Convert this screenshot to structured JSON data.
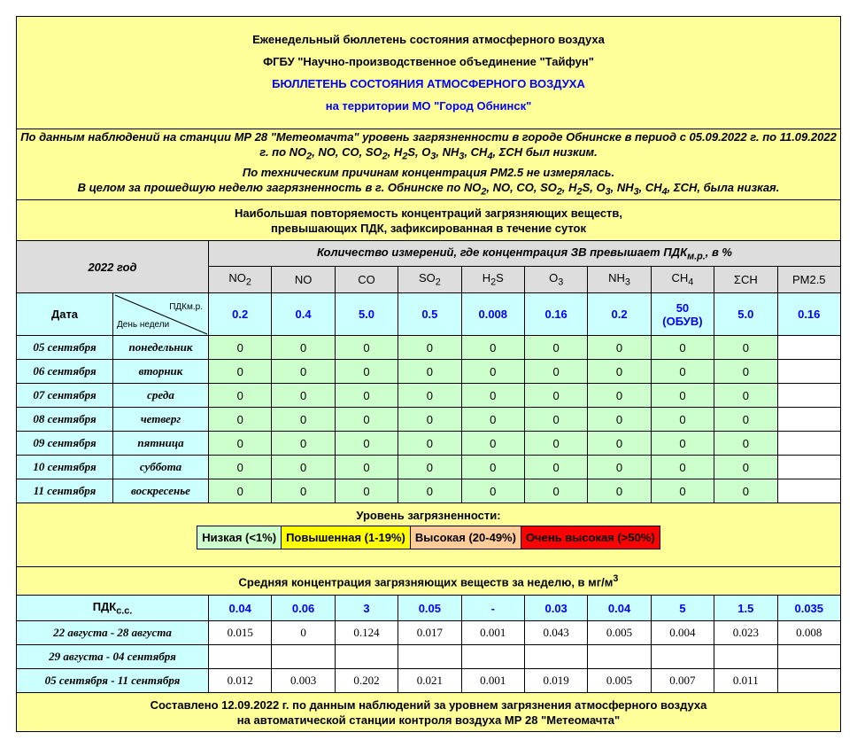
{
  "header": {
    "line1": "Еженедельный бюллетень состояния атмосферного воздуха",
    "line2": "ФГБУ \"Научно-производственное объединение \"Тайфун\"",
    "line3": "БЮЛЛЕТЕНЬ СОСТОЯНИЯ АТМОСФЕРНОГО ВОЗДУХА",
    "line4": "на территории МО \"Город Обнинск\""
  },
  "summary": {
    "p1": "По данным наблюдений на станции МР 28 \"Метеомачта\" уровень загрязненности в городе Обнинске в период с 05.09.2022 г. по 11.09.2022 г. по NO<sub>2</sub>, NO, CO, SO<sub>2</sub>, H<sub>2</sub>S, O<sub>3</sub>, NH<sub>3</sub>, CH<sub>4</sub>, ΣCH был низким.",
    "p2": "По техническим причинам концентрация PM2.5 не измерялась.",
    "p3": "В целом за прошедшую неделю загрязненность в г. Обнинске по NO<sub>2</sub>, NO, CO, SO<sub>2</sub>, H<sub>2</sub>S, O<sub>3</sub>, NH<sub>3</sub>, CH<sub>4</sub>, ΣCH, была низкая."
  },
  "section1": {
    "title": "Наибольшая повторяемость концентраций загрязняющих веществ,<br>превышающих ПДК, зафиксированная в течение суток",
    "year": "2022 год",
    "count_header": "Количество измерений, где концентрация ЗВ превышает ПДК<sub>м.р.</sub>, в %",
    "date_label": "Дата",
    "pdk_label": "ПДКм.р.",
    "weekday_label": "День недели"
  },
  "pollutants": [
    "NO<sub>2</sub>",
    "NO",
    "CO",
    "SO<sub>2</sub>",
    "H<sub>2</sub>S",
    "O<sub>3</sub>",
    "NH<sub>3</sub>",
    "CH<sub>4</sub>",
    "ΣCH",
    "PM2.5"
  ],
  "pdk_mr": [
    "0.2",
    "0.4",
    "5.0",
    "0.5",
    "0.008",
    "0.16",
    "0.2",
    "50<br>(ОБУВ)",
    "5.0",
    "0.16"
  ],
  "days": [
    {
      "date": "05 сентября",
      "weekday": "понедельник",
      "values": [
        "0",
        "0",
        "0",
        "0",
        "0",
        "0",
        "0",
        "0",
        "0",
        ""
      ]
    },
    {
      "date": "06 сентября",
      "weekday": "вторник",
      "values": [
        "0",
        "0",
        "0",
        "0",
        "0",
        "0",
        "0",
        "0",
        "0",
        ""
      ]
    },
    {
      "date": "07 сентября",
      "weekday": "среда",
      "values": [
        "0",
        "0",
        "0",
        "0",
        "0",
        "0",
        "0",
        "0",
        "0",
        ""
      ]
    },
    {
      "date": "08 сентября",
      "weekday": "четверг",
      "values": [
        "0",
        "0",
        "0",
        "0",
        "0",
        "0",
        "0",
        "0",
        "0",
        ""
      ]
    },
    {
      "date": "09 сентября",
      "weekday": "пятница",
      "values": [
        "0",
        "0",
        "0",
        "0",
        "0",
        "0",
        "0",
        "0",
        "0",
        ""
      ]
    },
    {
      "date": "10 сентября",
      "weekday": "суббота",
      "values": [
        "0",
        "0",
        "0",
        "0",
        "0",
        "0",
        "0",
        "0",
        "0",
        ""
      ]
    },
    {
      "date": "11 сентября",
      "weekday": "воскресенье",
      "values": [
        "0",
        "0",
        "0",
        "0",
        "0",
        "0",
        "0",
        "0",
        "0",
        ""
      ]
    }
  ],
  "legend": {
    "title": "Уровень загрязненности:",
    "items": [
      {
        "label": "Низкая (<1%)",
        "color": "#ccffcc"
      },
      {
        "label": "Повышенная (1-19%)",
        "color": "#ffff00"
      },
      {
        "label": "Высокая (20-49%)",
        "color": "#ffcc99"
      },
      {
        "label": "Очень высокая (>50%)",
        "color": "#ff0000"
      }
    ]
  },
  "section2": {
    "title": "Средняя концентрация загрязняющих веществ за неделю, в мг/м<sup>3</sup>",
    "pdk_label": "ПДК<sub>с.с.</sub>"
  },
  "pdk_ss": [
    "0.04",
    "0.06",
    "3",
    "0.05",
    "-",
    "0.03",
    "0.04",
    "5",
    "1.5",
    "0.035"
  ],
  "weeks": [
    {
      "period": "22 августа - 28 августа",
      "values": [
        "0.015",
        "0",
        "0.124",
        "0.017",
        "0.001",
        "0.043",
        "0.005",
        "0.004",
        "0.023",
        "0.008"
      ]
    },
    {
      "period": "29 августа - 04 сентября",
      "values": [
        "",
        "",
        "",
        "",
        "",
        "",
        "",
        "",
        "",
        ""
      ]
    },
    {
      "period": "05 сентября - 11 сентября",
      "values": [
        "0.012",
        "0.003",
        "0.202",
        "0.021",
        "0.001",
        "0.019",
        "0.005",
        "0.007",
        "0.011",
        ""
      ]
    }
  ],
  "footer": "Составлено 12.09.2022 г. по данным наблюдений за уровнем загрязнения атмосферного воздуха<br>на автоматической станции контроля воздуха МР 28 \"Метеомачта\""
}
